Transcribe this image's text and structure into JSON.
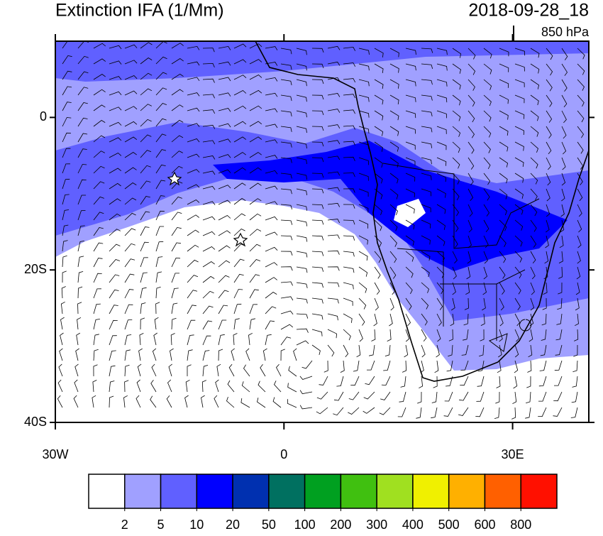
{
  "header": {
    "title": "Extinction IFA (1/Mm)",
    "date": "2018-09-28_18",
    "level": "850 hPa"
  },
  "map": {
    "lon_range": [
      -30,
      40
    ],
    "lat_range": [
      -40,
      10
    ],
    "lat_ticks": [
      {
        "value": 0,
        "label": "0"
      },
      {
        "value": -20,
        "label": "20S"
      },
      {
        "value": -40,
        "label": "40S"
      }
    ],
    "lon_ticks": [
      {
        "value": -30,
        "label": "30W"
      },
      {
        "value": 0,
        "label": "0"
      },
      {
        "value": 30,
        "label": "30E"
      }
    ]
  },
  "colorbar": {
    "colors": [
      "#ffffff",
      "#a0a0ff",
      "#6060ff",
      "#0000ff",
      "#0030b0",
      "#007060",
      "#00a020",
      "#40c010",
      "#a0e020",
      "#f0f000",
      "#ffb000",
      "#ff6000",
      "#ff1000"
    ],
    "levels": [
      2,
      5,
      10,
      20,
      50,
      100,
      200,
      300,
      400,
      500,
      600,
      800
    ]
  }
}
